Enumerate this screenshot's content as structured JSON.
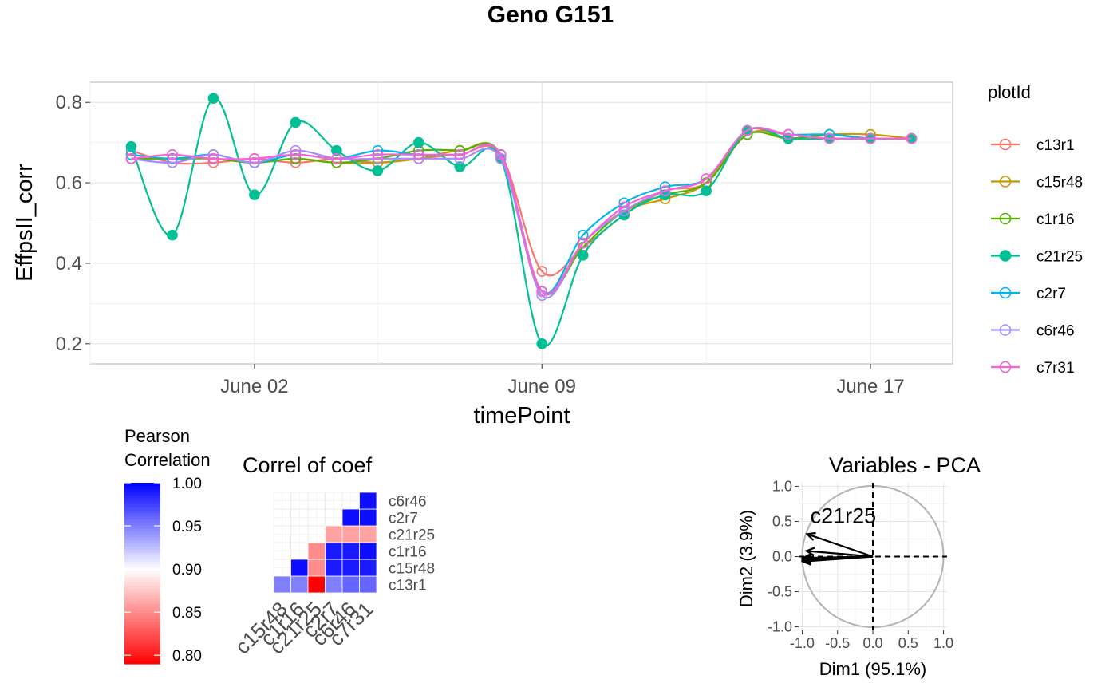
{
  "title": "Geno G151",
  "colors": {
    "c13r1": "#F8766D",
    "c15r48": "#C49A00",
    "c1r16": "#53B400",
    "c21r25": "#00C094",
    "c2r7": "#00B6EB",
    "c6r46": "#A58AFF",
    "c7r31": "#FB61D7"
  },
  "chart_data": [
    {
      "type": "line",
      "title": "Geno G151",
      "xlabel": "timePoint",
      "ylabel": "EffpsII_corr",
      "x_ticks": [
        "June 02",
        "June 09",
        "June 17"
      ],
      "y_ticks": [
        "0.2",
        "0.4",
        "0.6",
        "0.8"
      ],
      "ylim": [
        0.15,
        0.85
      ],
      "legend_title": "plotId",
      "legend_position": "right",
      "x": [
        "2019-05-30",
        "2019-05-31",
        "2019-06-01",
        "2019-06-02",
        "2019-06-03",
        "2019-06-04",
        "2019-06-05",
        "2019-06-06",
        "2019-06-07",
        "2019-06-08",
        "2019-06-09",
        "2019-06-10",
        "2019-06-11",
        "2019-06-12",
        "2019-06-13",
        "2019-06-14",
        "2019-06-15",
        "2019-06-16",
        "2019-06-17",
        "2019-06-18"
      ],
      "series": [
        {
          "name": "c13r1",
          "values": [
            0.68,
            0.65,
            0.65,
            0.66,
            0.65,
            0.66,
            0.65,
            0.66,
            0.67,
            0.67,
            0.38,
            0.44,
            0.52,
            0.58,
            0.6,
            0.72,
            0.72,
            0.71,
            0.71,
            0.71
          ]
        },
        {
          "name": "c15r48",
          "values": [
            0.66,
            0.66,
            0.66,
            0.65,
            0.66,
            0.65,
            0.65,
            0.66,
            0.68,
            0.67,
            0.33,
            0.45,
            0.53,
            0.56,
            0.6,
            0.73,
            0.71,
            0.72,
            0.72,
            0.71
          ]
        },
        {
          "name": "c1r16",
          "values": [
            0.66,
            0.66,
            0.66,
            0.65,
            0.66,
            0.65,
            0.66,
            0.68,
            0.68,
            0.67,
            0.33,
            0.44,
            0.53,
            0.57,
            0.6,
            0.72,
            0.71,
            0.72,
            0.71,
            0.71
          ]
        },
        {
          "name": "c21r25",
          "values": [
            0.69,
            0.47,
            0.81,
            0.57,
            0.75,
            0.68,
            0.63,
            0.7,
            0.64,
            0.66,
            0.2,
            0.42,
            0.52,
            0.57,
            0.58,
            0.73,
            0.71,
            0.71,
            0.71,
            0.71
          ]
        },
        {
          "name": "c2r7",
          "values": [
            0.67,
            0.66,
            0.67,
            0.65,
            0.67,
            0.66,
            0.68,
            0.67,
            0.67,
            0.67,
            0.33,
            0.47,
            0.55,
            0.59,
            0.61,
            0.73,
            0.72,
            0.72,
            0.71,
            0.71
          ]
        },
        {
          "name": "c6r46",
          "values": [
            0.66,
            0.65,
            0.67,
            0.65,
            0.68,
            0.66,
            0.66,
            0.66,
            0.66,
            0.66,
            0.32,
            0.45,
            0.53,
            0.58,
            0.61,
            0.73,
            0.72,
            0.71,
            0.71,
            0.71
          ]
        },
        {
          "name": "c7r31",
          "values": [
            0.66,
            0.67,
            0.66,
            0.66,
            0.67,
            0.66,
            0.67,
            0.67,
            0.67,
            0.67,
            0.33,
            0.45,
            0.54,
            0.58,
            0.61,
            0.73,
            0.72,
            0.71,
            0.71,
            0.71
          ]
        }
      ]
    },
    {
      "type": "heatmap",
      "title": "Correl of coef",
      "x_labels": [
        "c15r48",
        "c1r16",
        "c21r25",
        "c2r7",
        "c6r46",
        "c7r31"
      ],
      "y_labels": [
        "c13r1",
        "c15r48",
        "c1r16",
        "c21r25",
        "c2r7",
        "c6r46"
      ],
      "legend_title": "Pearson\nCorrelation",
      "legend_ticks": [
        "1.00",
        "0.95",
        "0.90",
        "0.85",
        "0.80"
      ],
      "legend_range": [
        0.79,
        1.0
      ],
      "legend_position": "left",
      "cells": [
        {
          "x": "c15r48",
          "y": "c13r1",
          "value": 0.95
        },
        {
          "x": "c1r16",
          "y": "c13r1",
          "value": 0.95
        },
        {
          "x": "c21r25",
          "y": "c13r1",
          "value": 0.79
        },
        {
          "x": "c2r7",
          "y": "c13r1",
          "value": 0.95
        },
        {
          "x": "c6r46",
          "y": "c13r1",
          "value": 0.96
        },
        {
          "x": "c7r31",
          "y": "c13r1",
          "value": 0.96
        },
        {
          "x": "c1r16",
          "y": "c15r48",
          "value": 0.995
        },
        {
          "x": "c21r25",
          "y": "c15r48",
          "value": 0.85
        },
        {
          "x": "c2r7",
          "y": "c15r48",
          "value": 0.99
        },
        {
          "x": "c6r46",
          "y": "c15r48",
          "value": 0.99
        },
        {
          "x": "c7r31",
          "y": "c15r48",
          "value": 0.99
        },
        {
          "x": "c21r25",
          "y": "c1r16",
          "value": 0.85
        },
        {
          "x": "c2r7",
          "y": "c1r16",
          "value": 0.99
        },
        {
          "x": "c6r46",
          "y": "c1r16",
          "value": 0.99
        },
        {
          "x": "c7r31",
          "y": "c1r16",
          "value": 0.995
        },
        {
          "x": "c2r7",
          "y": "c21r25",
          "value": 0.86
        },
        {
          "x": "c6r46",
          "y": "c21r25",
          "value": 0.86
        },
        {
          "x": "c7r31",
          "y": "c21r25",
          "value": 0.86
        },
        {
          "x": "c6r46",
          "y": "c2r7",
          "value": 0.995
        },
        {
          "x": "c7r31",
          "y": "c2r7",
          "value": 0.995
        },
        {
          "x": "c7r31",
          "y": "c6r46",
          "value": 0.995
        }
      ]
    },
    {
      "type": "scatter",
      "title": "Variables - PCA",
      "xlabel": "Dim1 (95.1%)",
      "ylabel": "Dim2 (3.9%)",
      "x_ticks": [
        "-1.0",
        "-0.5",
        "0.0",
        "0.5",
        "1.0"
      ],
      "y_ticks": [
        "-1.0",
        "-0.5",
        "0.0",
        "0.5",
        "1.0"
      ],
      "xlim": [
        -1.05,
        1.05
      ],
      "ylim": [
        -1.05,
        1.05
      ],
      "visible_label": "c21r25",
      "vectors": [
        {
          "name": "c13r1",
          "x": -0.94,
          "y": 0.08
        },
        {
          "name": "c15r48",
          "x": -0.99,
          "y": -0.03
        },
        {
          "name": "c1r16",
          "x": -0.99,
          "y": -0.02
        },
        {
          "name": "c21r25",
          "x": -0.93,
          "y": 0.32
        },
        {
          "name": "c2r7",
          "x": -0.99,
          "y": -0.06
        },
        {
          "name": "c6r46",
          "x": -0.99,
          "y": -0.05
        },
        {
          "name": "c7r31",
          "x": -0.99,
          "y": -0.07
        }
      ]
    }
  ]
}
